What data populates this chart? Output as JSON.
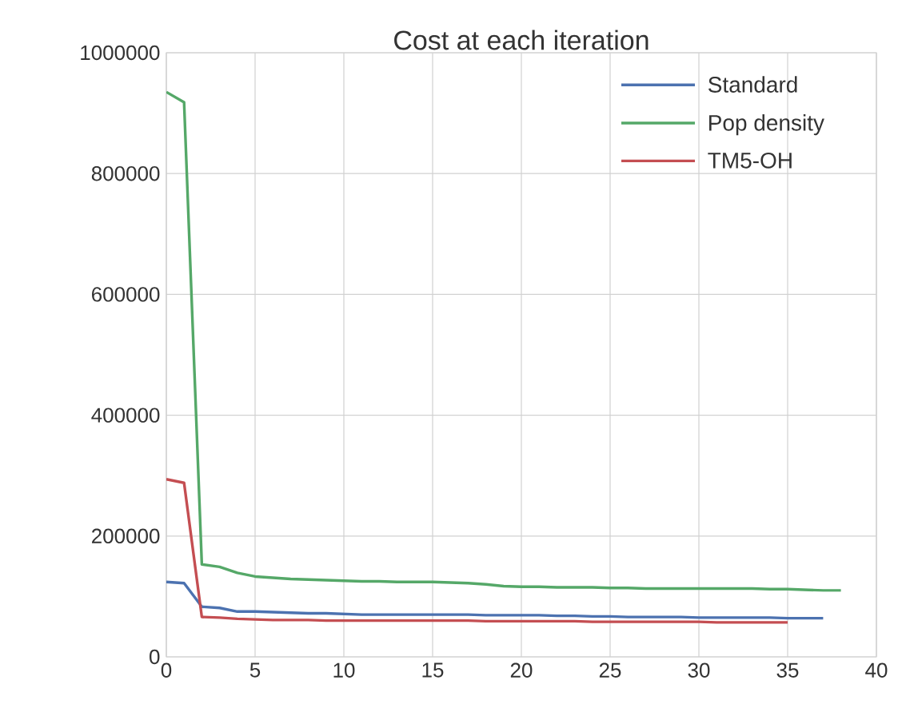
{
  "chart_data": {
    "type": "line",
    "title": "Cost at each iteration",
    "xlim": [
      0,
      40
    ],
    "ylim": [
      0,
      1000000
    ],
    "xticks": [
      0,
      5,
      10,
      15,
      20,
      25,
      30,
      35,
      40
    ],
    "yticks": [
      0,
      200000,
      400000,
      600000,
      800000,
      1000000
    ],
    "grid": true,
    "legend": "top right",
    "series": [
      {
        "name": "Standard",
        "color": "#4c72b0",
        "x": [
          0,
          1,
          2,
          3,
          4,
          5,
          6,
          7,
          8,
          9,
          10,
          11,
          12,
          13,
          14,
          15,
          16,
          17,
          18,
          19,
          20,
          21,
          22,
          23,
          24,
          25,
          26,
          27,
          28,
          29,
          30,
          31,
          32,
          33,
          34,
          35,
          36,
          37
        ],
        "values": [
          124000,
          122000,
          83000,
          81000,
          75000,
          75000,
          74000,
          73000,
          72000,
          72000,
          71000,
          70000,
          70000,
          70000,
          70000,
          70000,
          70000,
          70000,
          69000,
          69000,
          69000,
          69000,
          68000,
          68000,
          67000,
          67000,
          66000,
          66000,
          66000,
          66000,
          65000,
          65000,
          65000,
          65000,
          65000,
          64000,
          64000,
          64000
        ]
      },
      {
        "name": "Pop density",
        "color": "#55a868",
        "x": [
          0,
          1,
          2,
          3,
          4,
          5,
          6,
          7,
          8,
          9,
          10,
          11,
          12,
          13,
          14,
          15,
          16,
          17,
          18,
          19,
          20,
          21,
          22,
          23,
          24,
          25,
          26,
          27,
          28,
          29,
          30,
          31,
          32,
          33,
          34,
          35,
          36,
          37,
          38
        ],
        "values": [
          935000,
          918000,
          153000,
          149000,
          139000,
          133000,
          131000,
          129000,
          128000,
          127000,
          126000,
          125000,
          125000,
          124000,
          124000,
          124000,
          123000,
          122000,
          120000,
          117000,
          116000,
          116000,
          115000,
          115000,
          115000,
          114000,
          114000,
          113000,
          113000,
          113000,
          113000,
          113000,
          113000,
          113000,
          112000,
          112000,
          111000,
          110000,
          110000
        ]
      },
      {
        "name": "TM5-OH",
        "color": "#c44e52",
        "x": [
          0,
          1,
          2,
          3,
          4,
          5,
          6,
          7,
          8,
          9,
          10,
          11,
          12,
          13,
          14,
          15,
          16,
          17,
          18,
          19,
          20,
          21,
          22,
          23,
          24,
          25,
          26,
          27,
          28,
          29,
          30,
          31,
          32,
          33,
          34,
          35
        ],
        "values": [
          294000,
          288000,
          66000,
          65000,
          63000,
          62000,
          61000,
          61000,
          61000,
          60000,
          60000,
          60000,
          60000,
          60000,
          60000,
          60000,
          60000,
          60000,
          59000,
          59000,
          59000,
          59000,
          59000,
          59000,
          58000,
          58000,
          58000,
          58000,
          58000,
          58000,
          58000,
          57000,
          57000,
          57000,
          57000,
          57000
        ]
      }
    ]
  }
}
